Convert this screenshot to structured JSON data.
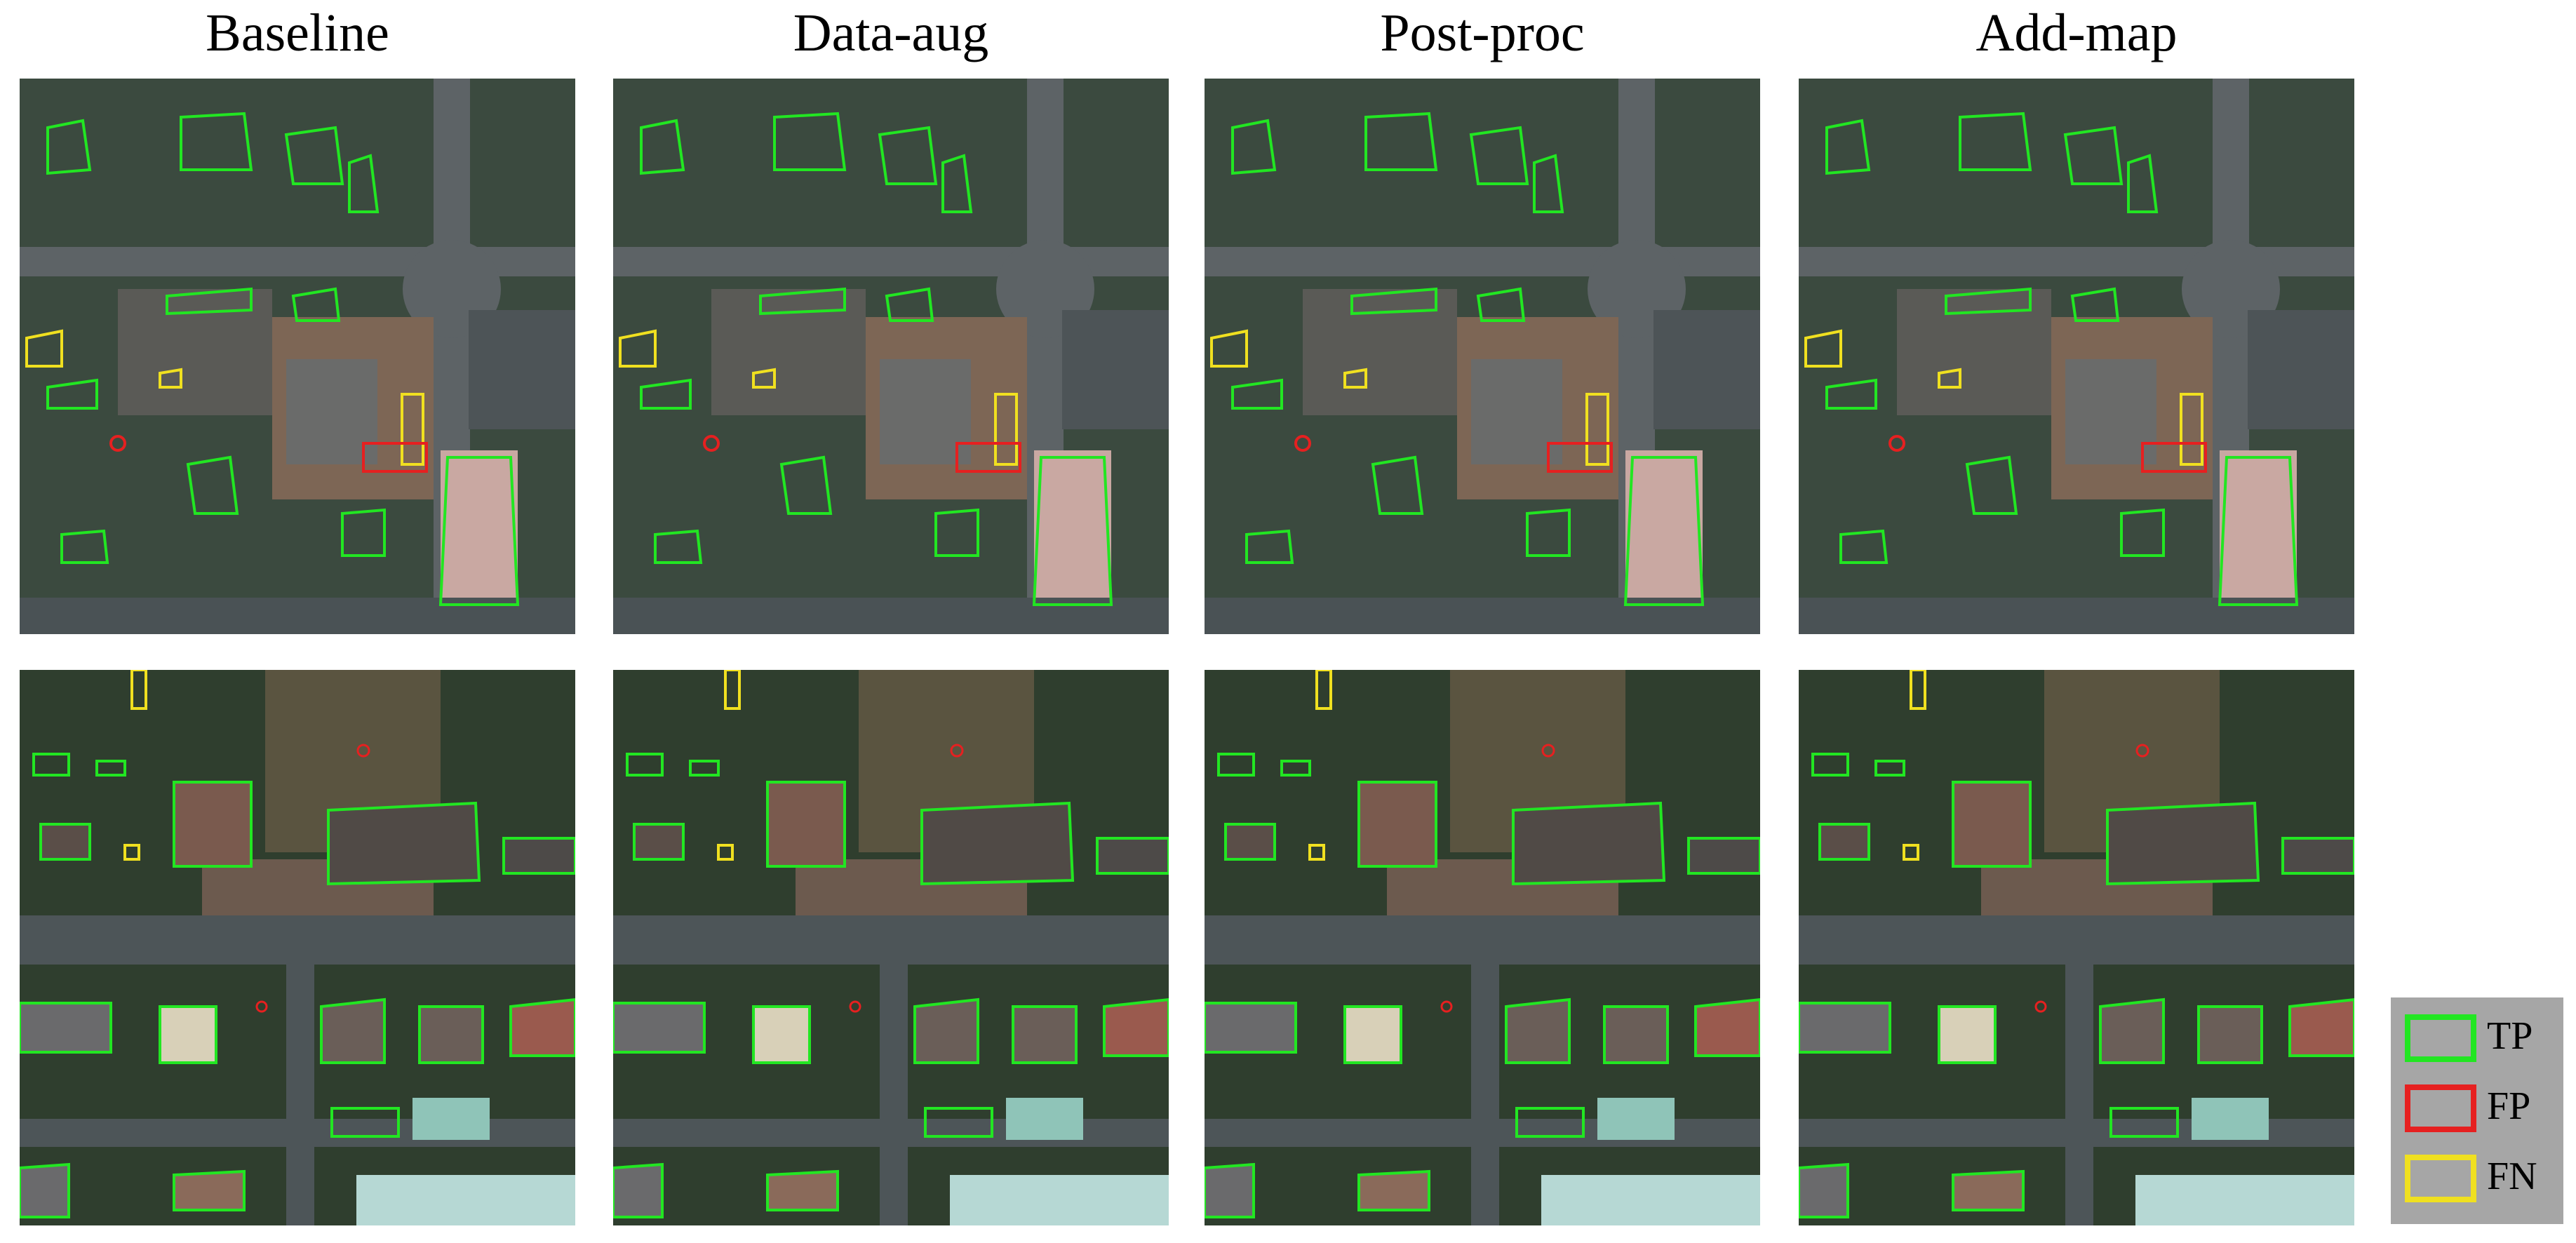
{
  "columns": [
    "Baseline",
    "Data-aug",
    "Post-proc",
    "Add-map"
  ],
  "legend": [
    {
      "label": "TP",
      "color": "#22e622"
    },
    {
      "label": "FP",
      "color": "#e62020"
    },
    {
      "label": "FN",
      "color": "#f0e020"
    }
  ]
}
